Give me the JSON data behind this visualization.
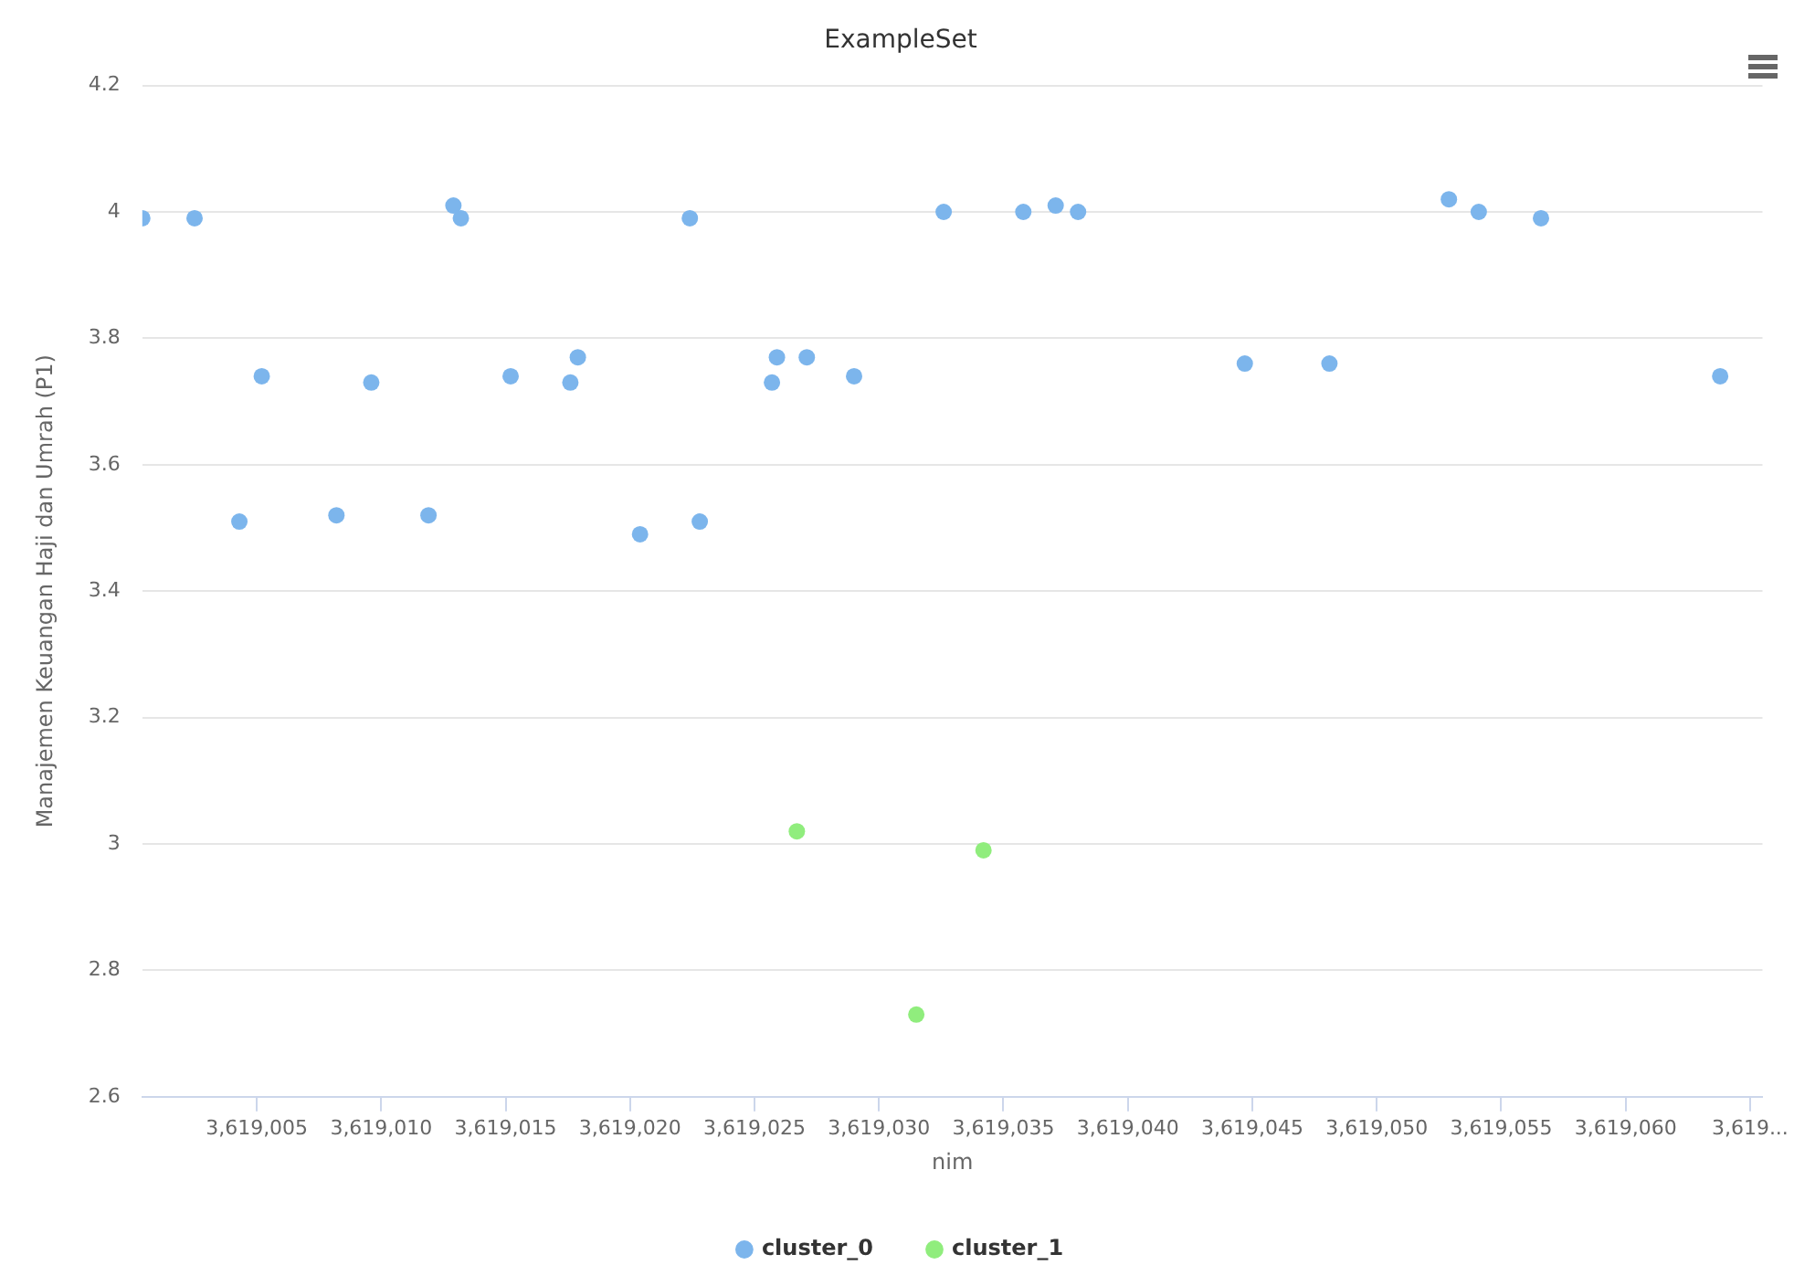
{
  "chart_data": {
    "type": "scatter",
    "title": "ExampleSet",
    "xlabel": "nim",
    "ylabel": "Manajemen Keuangan Haji dan Umrah (P1)",
    "xlim": [
      3619000.4,
      3619065.5
    ],
    "xticks": [
      {
        "value": 3619005,
        "label": "3,619,005"
      },
      {
        "value": 3619010,
        "label": "3,619,010"
      },
      {
        "value": 3619015,
        "label": "3,619,015"
      },
      {
        "value": 3619020,
        "label": "3,619,020"
      },
      {
        "value": 3619025,
        "label": "3,619,025"
      },
      {
        "value": 3619030,
        "label": "3,619,030"
      },
      {
        "value": 3619035,
        "label": "3,619,035"
      },
      {
        "value": 3619040,
        "label": "3,619,040"
      },
      {
        "value": 3619045,
        "label": "3,619,045"
      },
      {
        "value": 3619050,
        "label": "3,619,050"
      },
      {
        "value": 3619055,
        "label": "3,619,055"
      },
      {
        "value": 3619060,
        "label": "3,619,060"
      },
      {
        "value": 3619065,
        "label": "3,619..."
      }
    ],
    "ylim": [
      2.6,
      4.2
    ],
    "yticks": [
      2.6,
      2.8,
      3,
      3.2,
      3.4,
      3.6,
      3.8,
      4,
      4.2
    ],
    "grid": "y",
    "legend": "bottom",
    "marker": "circle",
    "series": [
      {
        "name": "cluster_0",
        "color": "#7cb5ec",
        "x": [
          3619000.4,
          3619002.5,
          3619004.3,
          3619005.2,
          3619008.2,
          3619009.6,
          3619011.9,
          3619012.9,
          3619013.2,
          3619015.2,
          3619017.6,
          3619017.9,
          3619020.4,
          3619022.4,
          3619022.8,
          3619025.7,
          3619025.9,
          3619027.1,
          3619029.0,
          3619032.6,
          3619035.8,
          3619037.1,
          3619038.0,
          3619044.7,
          3619048.1,
          3619052.9,
          3619054.1,
          3619056.6,
          3619063.8
        ],
        "values": [
          3.99,
          3.99,
          3.51,
          3.74,
          3.52,
          3.73,
          3.52,
          4.01,
          3.99,
          3.74,
          3.73,
          3.77,
          3.49,
          3.99,
          3.51,
          3.73,
          3.77,
          3.77,
          3.74,
          4.0,
          4.0,
          4.01,
          4.0,
          3.76,
          3.76,
          4.02,
          4.0,
          3.99,
          3.74
        ]
      },
      {
        "name": "cluster_1",
        "color": "#90ed7d",
        "x": [
          3619026.7,
          3619031.5,
          3619034.2
        ],
        "values": [
          3.02,
          2.73,
          2.99
        ]
      }
    ]
  }
}
